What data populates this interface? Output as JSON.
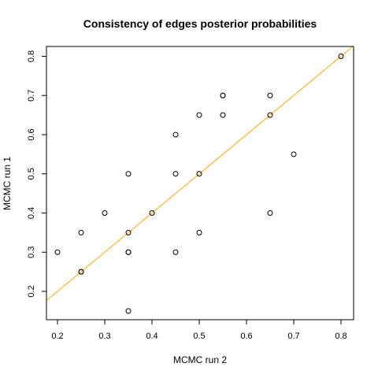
{
  "chart_data": {
    "type": "scatter",
    "title": "Consistency of edges posterior probabilities",
    "xlabel": "MCMC run 2",
    "ylabel": "MCMC run 1",
    "xlim": [
      0.2,
      0.8
    ],
    "ylim": [
      0.15,
      0.8
    ],
    "xticks": [
      "0.2",
      "0.3",
      "0.4",
      "0.5",
      "0.6",
      "0.7",
      "0.8"
    ],
    "yticks": [
      "0.2",
      "0.3",
      "0.4",
      "0.5",
      "0.6",
      "0.7",
      "0.8"
    ],
    "points": [
      [
        0.2,
        0.3
      ],
      [
        0.25,
        0.35
      ],
      [
        0.25,
        0.25
      ],
      [
        0.25,
        0.25
      ],
      [
        0.3,
        0.4
      ],
      [
        0.35,
        0.5
      ],
      [
        0.35,
        0.35
      ],
      [
        0.35,
        0.3
      ],
      [
        0.35,
        0.3
      ],
      [
        0.35,
        0.15
      ],
      [
        0.4,
        0.4
      ],
      [
        0.45,
        0.6
      ],
      [
        0.45,
        0.5
      ],
      [
        0.45,
        0.3
      ],
      [
        0.5,
        0.65
      ],
      [
        0.5,
        0.5
      ],
      [
        0.5,
        0.35
      ],
      [
        0.55,
        0.7
      ],
      [
        0.55,
        0.7
      ],
      [
        0.55,
        0.65
      ],
      [
        0.65,
        0.7
      ],
      [
        0.65,
        0.65
      ],
      [
        0.65,
        0.4
      ],
      [
        0.7,
        0.55
      ],
      [
        0.8,
        0.8
      ]
    ],
    "reference_line": {
      "type": "y=x",
      "color": "#FFA500"
    },
    "point_style": "open-circle",
    "grid": false
  }
}
